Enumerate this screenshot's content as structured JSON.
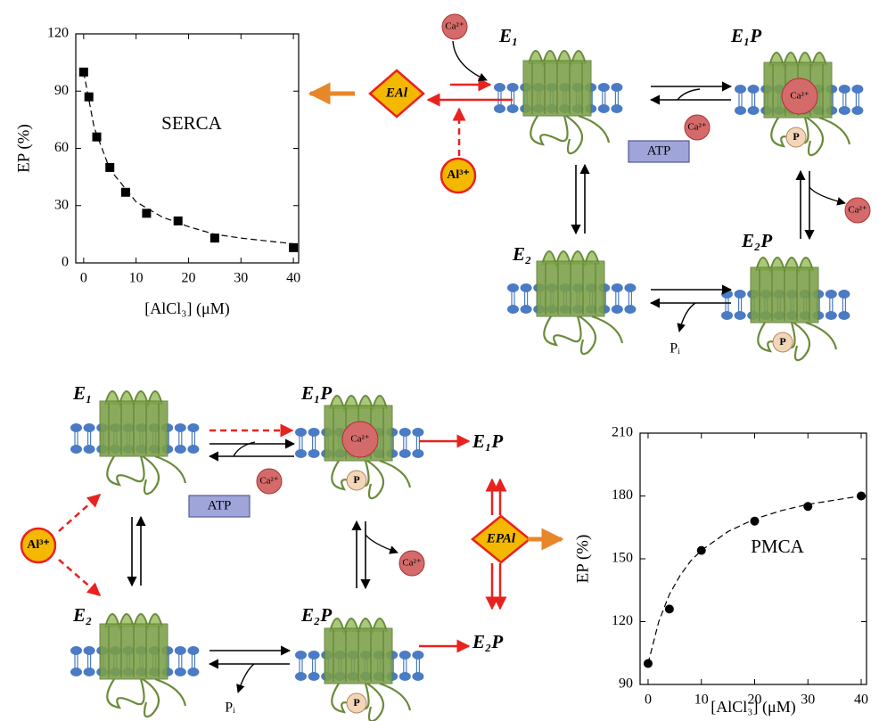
{
  "chart_data": [
    {
      "type": "scatter",
      "title": "SERCA",
      "xlabel": "[AlCl₃] (μM)",
      "ylabel": "EP (%)",
      "xlim": [
        -1.5,
        41
      ],
      "xticks": [
        0,
        10,
        20,
        30,
        40
      ],
      "ylim": [
        0,
        120
      ],
      "yticks": [
        0,
        30,
        60,
        90,
        120
      ],
      "series": [
        {
          "color": "#000000",
          "marker": "square",
          "x": [
            0,
            1,
            2.5,
            5,
            8,
            12,
            18,
            25,
            40
          ],
          "values": [
            100,
            87,
            66,
            50,
            37,
            26,
            22,
            13,
            8
          ]
        },
        {
          "color": "#000000",
          "style": "dashed",
          "x": [
            0,
            2,
            5,
            10,
            15,
            20,
            25,
            30,
            35,
            40
          ],
          "values": [
            100,
            71,
            49,
            32,
            24,
            19,
            15,
            13,
            11.5,
            10
          ]
        }
      ]
    },
    {
      "type": "scatter",
      "title": "PMCA",
      "xlabel": "[AlCl₃] (μM)",
      "ylabel": "EP (%)",
      "xlim": [
        -1.5,
        41
      ],
      "xticks": [
        0,
        10,
        20,
        30,
        40
      ],
      "ylim": [
        90,
        210
      ],
      "yticks": [
        90,
        120,
        150,
        180,
        210
      ],
      "series": [
        {
          "color": "#000000",
          "marker": "circle",
          "x": [
            0,
            4,
            10,
            20,
            30,
            40
          ],
          "values": [
            100,
            126,
            154,
            168,
            175,
            180
          ]
        },
        {
          "color": "#000000",
          "style": "dashed",
          "x": [
            0,
            2,
            4,
            6,
            8,
            10,
            15,
            20,
            25,
            30,
            35,
            40
          ],
          "values": [
            100,
            120,
            133,
            142,
            149,
            154,
            163,
            169,
            173,
            176,
            178,
            180
          ]
        }
      ]
    }
  ],
  "diagram": {
    "top": {
      "states": [
        "E₁",
        "E₁P",
        "E₂",
        "E₂P"
      ],
      "ions": [
        "Ca²⁺",
        "Ca²⁺",
        "Ca²⁺",
        "Ca²⁺"
      ],
      "inhibitor": "Al³⁺",
      "complex": "EAl",
      "atp": "ATP",
      "phosphate": "Pᵢ",
      "p_marks": [
        "P",
        "P"
      ]
    },
    "bottom": {
      "states": [
        "E₁",
        "E₁P",
        "E₂",
        "E₂P",
        "E₁P",
        "E₂P"
      ],
      "ions": [
        "Ca²⁺",
        "Ca²⁺",
        "Ca²⁺"
      ],
      "inhibitor": "Al³⁺",
      "complex": "EPAl",
      "atp": "ATP",
      "phosphate": "Pᵢ",
      "p_marks": [
        "P",
        "P"
      ]
    }
  }
}
